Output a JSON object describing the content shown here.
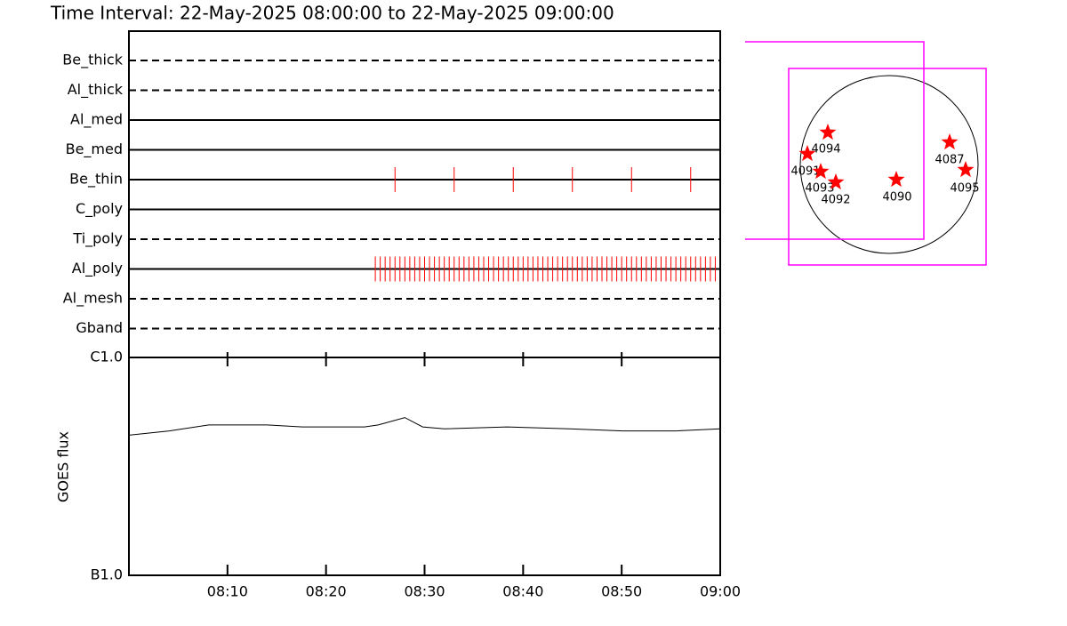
{
  "chart_data": [
    {
      "type": "timeline",
      "title": "Time Interval: 22-May-2025 08:00:00 to 22-May-2025 09:00:00",
      "xlim": [
        0,
        60
      ],
      "obs_color": "#ff0000",
      "rows": [
        {
          "name": "Be_thick",
          "linestyle": "dashed",
          "x": []
        },
        {
          "name": "Al_thick",
          "linestyle": "dashed",
          "x": []
        },
        {
          "name": "Al_med",
          "linestyle": "solid",
          "x": []
        },
        {
          "name": "Be_med",
          "linestyle": "solid",
          "x": []
        },
        {
          "name": "Be_thin",
          "linestyle": "solid",
          "x": [
            27,
            33,
            39,
            45,
            51,
            57
          ]
        },
        {
          "name": "C_poly",
          "linestyle": "solid",
          "x": []
        },
        {
          "name": "Ti_poly",
          "linestyle": "dashed",
          "x": []
        },
        {
          "name": "Al_poly",
          "linestyle": "solid",
          "x": [
            25,
            25.5,
            26,
            26.5,
            27,
            27.5,
            28,
            28.5,
            29,
            29.5,
            30,
            30.5,
            31,
            31.5,
            32,
            32.5,
            33,
            33.5,
            34,
            34.5,
            35,
            35.5,
            36,
            36.5,
            37,
            37.5,
            38,
            38.5,
            39,
            39.5,
            40,
            40.5,
            41,
            41.5,
            42,
            42.5,
            43,
            43.5,
            44,
            44.5,
            45,
            45.5,
            46,
            46.5,
            47,
            47.5,
            48,
            48.5,
            49,
            49.5,
            50,
            50.5,
            51,
            51.5,
            52,
            52.5,
            53,
            53.5,
            54,
            54.5,
            55,
            55.5,
            56,
            56.5,
            57,
            57.5,
            58,
            58.5,
            59,
            59.5
          ]
        },
        {
          "name": "Al_mesh",
          "linestyle": "dashed",
          "x": []
        },
        {
          "name": "Gband",
          "linestyle": "dashed",
          "x": []
        }
      ]
    },
    {
      "type": "line",
      "ylabel": "GOES flux",
      "x": [
        0,
        4.1,
        8.1,
        14,
        17.6,
        23.9,
        25.3,
        28,
        29.8,
        32,
        38.4,
        44.7,
        50.1,
        55.5,
        60
      ],
      "values": [
        4.4e-07,
        4.6e-07,
        4.9e-07,
        4.9e-07,
        4.8e-07,
        4.8e-07,
        4.9e-07,
        5.3e-07,
        4.8e-07,
        4.7e-07,
        4.8e-07,
        4.7e-07,
        4.6e-07,
        4.6e-07,
        4.7e-07
      ],
      "color": "#000000",
      "log_y": true,
      "ylim": [
        1e-07,
        1e-06
      ],
      "yticks": [
        {
          "value": 1e-07,
          "label": "B1.0"
        },
        {
          "value": 1e-06,
          "label": "C1.0"
        }
      ],
      "xlim": [
        0,
        60
      ],
      "xticks": [
        {
          "value": 10,
          "label": "08:10"
        },
        {
          "value": 20,
          "label": "08:20"
        },
        {
          "value": 30,
          "label": "08:30"
        },
        {
          "value": 40,
          "label": "08:40"
        },
        {
          "value": 50,
          "label": "08:50"
        },
        {
          "value": 60,
          "label": "09:00"
        }
      ]
    },
    {
      "type": "map",
      "marker_color": "#ff0000",
      "box_color": "#ff00ff",
      "regions": [
        {
          "label": "4094"
        },
        {
          "label": "4091"
        },
        {
          "label": "4093"
        },
        {
          "label": "4092"
        },
        {
          "label": "4090"
        },
        {
          "label": "4087"
        },
        {
          "label": "4095"
        }
      ]
    }
  ]
}
